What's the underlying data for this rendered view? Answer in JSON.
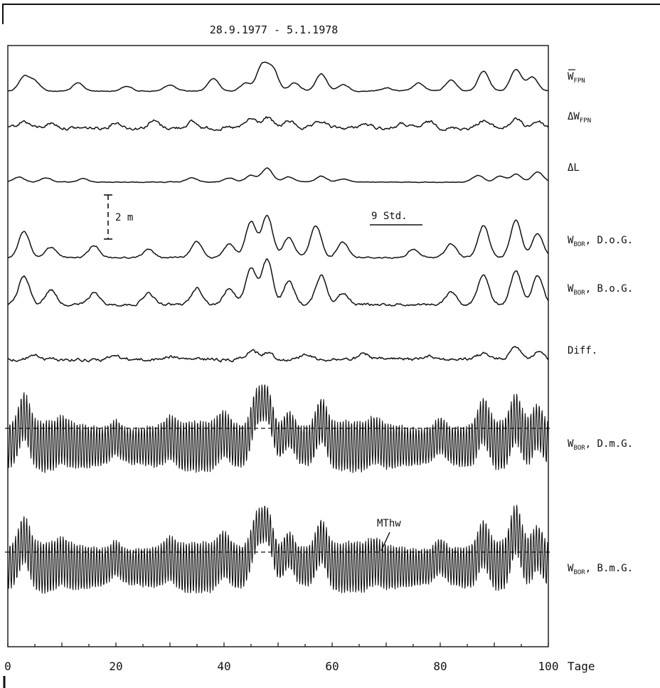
{
  "title": "28.9.1977 - 5.1.1978",
  "scale_bar_label": "2 m",
  "time_bar_label": "9 Std.",
  "mthw_label": "MThw",
  "chart_data": {
    "type": "line",
    "title": "28.9.1977 - 5.1.1978",
    "xlabel": "Tage",
    "xlim": [
      0,
      100
    ],
    "x_ticks": [
      "0",
      "20",
      "40",
      "60",
      "80",
      "100"
    ],
    "x_tick_values": [
      0,
      20,
      40,
      60,
      80,
      100
    ],
    "grid": false,
    "legend": "right",
    "series": [
      {
        "name": "W FPN",
        "label_main": "W",
        "label_sub": "FPN",
        "label_suffix": "",
        "overline": true,
        "peaks": [
          [
            3,
            0.9
          ],
          [
            5,
            0.6
          ],
          [
            13,
            0.5
          ],
          [
            22,
            0.3
          ],
          [
            30,
            0.4
          ],
          [
            38,
            0.8
          ],
          [
            44,
            0.5
          ],
          [
            47,
            1.6
          ],
          [
            49,
            1.4
          ],
          [
            53,
            0.5
          ],
          [
            58,
            1.1
          ],
          [
            62,
            0.4
          ],
          [
            70,
            0.2
          ],
          [
            76,
            0.5
          ],
          [
            82,
            0.7
          ],
          [
            88,
            1.3
          ],
          [
            94,
            1.4
          ],
          [
            97,
            0.9
          ]
        ]
      },
      {
        "name": "ΔW FPN",
        "label_main": "ΔW",
        "label_sub": "FPN",
        "label_suffix": "",
        "overline": false,
        "peaks": [
          [
            3,
            0.7
          ],
          [
            8,
            0.5
          ],
          [
            20,
            0.6
          ],
          [
            27,
            0.7
          ],
          [
            34,
            0.6
          ],
          [
            45,
            0.9
          ],
          [
            48,
            1.0
          ],
          [
            52,
            0.7
          ],
          [
            58,
            0.6
          ],
          [
            66,
            0.4
          ],
          [
            73,
            0.4
          ],
          [
            78,
            0.6
          ],
          [
            88,
            0.8
          ],
          [
            94,
            0.9
          ],
          [
            98,
            0.7
          ]
        ]
      },
      {
        "name": "ΔL",
        "label_main": "ΔL",
        "label_sub": "",
        "label_suffix": "",
        "overline": false,
        "peaks": [
          [
            2,
            0.6
          ],
          [
            7,
            0.5
          ],
          [
            14,
            0.4
          ],
          [
            34,
            0.5
          ],
          [
            41,
            0.5
          ],
          [
            45,
            0.8
          ],
          [
            48,
            1.6
          ],
          [
            52,
            0.6
          ],
          [
            58,
            0.7
          ],
          [
            62,
            0.4
          ],
          [
            87,
            0.8
          ],
          [
            91,
            0.7
          ],
          [
            94,
            0.9
          ],
          [
            98,
            1.2
          ]
        ]
      },
      {
        "name": "W BOR, D.o.G.",
        "label_main": "W",
        "label_sub": "BOR",
        "label_suffix": ", D.o.G.",
        "overline": false,
        "peaks": [
          [
            3,
            1.3
          ],
          [
            8,
            0.5
          ],
          [
            16,
            0.6
          ],
          [
            26,
            0.4
          ],
          [
            35,
            0.8
          ],
          [
            41,
            0.7
          ],
          [
            45,
            1.8
          ],
          [
            48,
            2.1
          ],
          [
            52,
            1.0
          ],
          [
            57,
            1.6
          ],
          [
            62,
            0.8
          ],
          [
            75,
            0.4
          ],
          [
            82,
            0.7
          ],
          [
            88,
            1.6
          ],
          [
            94,
            1.9
          ],
          [
            98,
            1.2
          ]
        ]
      },
      {
        "name": "W BOR, B.o.G.",
        "label_main": "W",
        "label_sub": "BOR",
        "label_suffix": ", B.o.G.",
        "overline": false,
        "peaks": [
          [
            3,
            1.5
          ],
          [
            8,
            0.8
          ],
          [
            16,
            0.6
          ],
          [
            26,
            0.6
          ],
          [
            35,
            0.9
          ],
          [
            41,
            0.9
          ],
          [
            45,
            2.0
          ],
          [
            48,
            2.4
          ],
          [
            52,
            1.2
          ],
          [
            58,
            1.6
          ],
          [
            62,
            0.6
          ],
          [
            82,
            0.7
          ],
          [
            88,
            1.7
          ],
          [
            94,
            1.8
          ],
          [
            98,
            1.5
          ]
        ]
      },
      {
        "name": "Diff.",
        "label_main": "Diff.",
        "label_sub": "",
        "label_suffix": "",
        "overline": false,
        "peaks": [
          [
            5,
            0.4
          ],
          [
            20,
            0.3
          ],
          [
            30,
            0.3
          ],
          [
            45,
            0.8
          ],
          [
            48,
            0.6
          ],
          [
            55,
            0.5
          ],
          [
            66,
            0.4
          ],
          [
            78,
            0.4
          ],
          [
            88,
            0.5
          ],
          [
            94,
            1.2
          ],
          [
            98,
            0.6
          ]
        ]
      },
      {
        "name": "W BOR, D.m.G.",
        "label_main": "W",
        "label_sub": "BOR",
        "label_suffix": ", D.m.G.",
        "overline": false,
        "mthw": true,
        "peaks": [
          [
            3,
            1.4
          ],
          [
            10,
            0.3
          ],
          [
            20,
            0.4
          ],
          [
            30,
            0.4
          ],
          [
            40,
            0.6
          ],
          [
            46,
            1.6
          ],
          [
            48,
            1.8
          ],
          [
            52,
            0.8
          ],
          [
            58,
            1.2
          ],
          [
            68,
            0.3
          ],
          [
            80,
            0.5
          ],
          [
            88,
            1.2
          ],
          [
            94,
            1.3
          ],
          [
            98,
            0.9
          ]
        ]
      },
      {
        "name": "W BOR, B.m.G.",
        "label_main": "W",
        "label_sub": "BOR",
        "label_suffix": ", B.m.G.",
        "overline": false,
        "mthw": true,
        "peaks": [
          [
            3,
            1.3
          ],
          [
            10,
            0.3
          ],
          [
            20,
            0.4
          ],
          [
            30,
            0.4
          ],
          [
            40,
            0.6
          ],
          [
            46,
            1.5
          ],
          [
            48,
            1.8
          ],
          [
            52,
            0.8
          ],
          [
            58,
            1.2
          ],
          [
            68,
            0.3
          ],
          [
            80,
            0.5
          ],
          [
            88,
            1.1
          ],
          [
            94,
            1.8
          ],
          [
            98,
            0.9
          ]
        ]
      }
    ]
  }
}
